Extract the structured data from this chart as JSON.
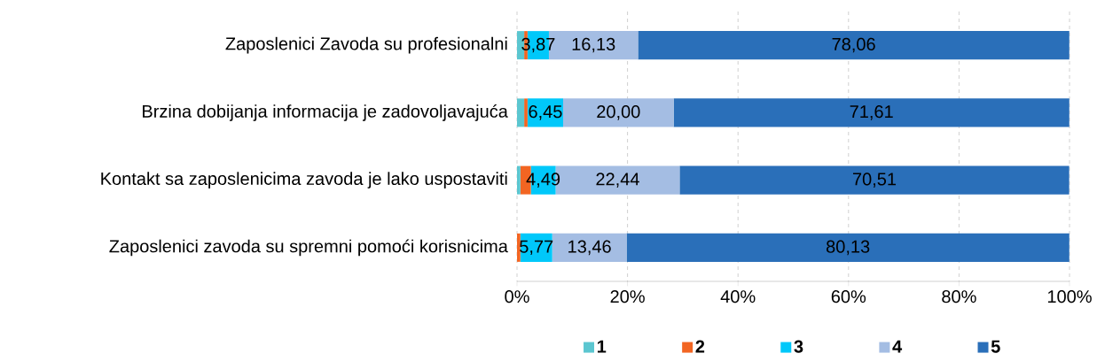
{
  "chart_data": {
    "type": "bar",
    "orientation": "horizontal",
    "stacked": true,
    "categories": [
      "Zaposlenici Zavoda su profesionalni",
      "Brzina dobijanja informacija je zadovoljavajuća",
      "Kontakt sa zaposlenicima zavoda je lako uspostaviti",
      "Zaposlenici zavoda su spremni pomoći korisnicima"
    ],
    "series": [
      {
        "name": "1",
        "color": "#5bc6d0",
        "values": [
          1.3,
          1.3,
          0.6,
          0
        ],
        "value_labels": [
          null,
          null,
          null,
          null
        ]
      },
      {
        "name": "2",
        "color": "#f26522",
        "values": [
          0.6,
          0.6,
          1.9,
          0.6
        ],
        "value_labels": [
          null,
          null,
          null,
          null
        ]
      },
      {
        "name": "3",
        "color": "#00c8fa",
        "values": [
          3.87,
          6.45,
          4.49,
          5.77
        ],
        "value_labels": [
          "3,87",
          "6,45",
          "4,49",
          "5,77"
        ]
      },
      {
        "name": "4",
        "color": "#a4bde3",
        "values": [
          16.13,
          20.0,
          22.44,
          13.46
        ],
        "value_labels": [
          "16,13",
          "20,00",
          "22,44",
          "13,46"
        ]
      },
      {
        "name": "5",
        "color": "#2a6fb9",
        "values": [
          78.06,
          71.61,
          70.51,
          80.13
        ],
        "value_labels": [
          "78,06",
          "71,61",
          "70,51",
          "80,13"
        ]
      }
    ],
    "xlim": [
      0,
      100
    ],
    "xticks": [
      {
        "value": 0,
        "label": "0%"
      },
      {
        "value": 20,
        "label": "20%"
      },
      {
        "value": 40,
        "label": "40%"
      },
      {
        "value": 60,
        "label": "60%"
      },
      {
        "value": 80,
        "label": "80%"
      },
      {
        "value": 100,
        "label": "100%"
      }
    ],
    "grid": "x",
    "legend": "bottom"
  }
}
